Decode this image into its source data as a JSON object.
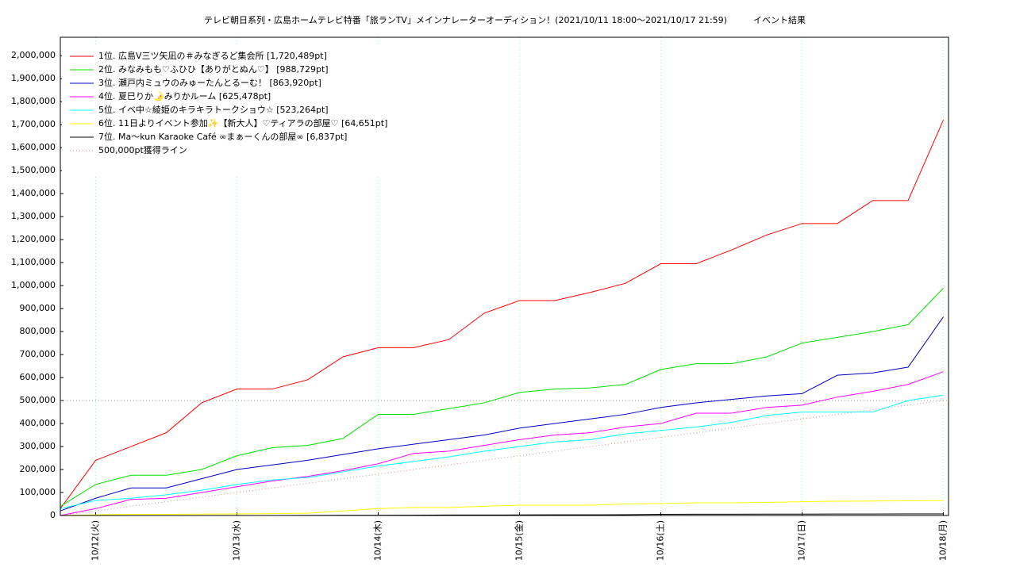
{
  "chart_data": {
    "type": "line",
    "title": "テレビ朝日系列・広島ホームテレビ特番「旅ランTV」メインナレーターオーディション！(2021/10/11 18:00〜2021/10/17 21:59)　　　イベント結果",
    "categories": [
      null,
      "10/12(火)",
      null,
      null,
      null,
      "10/13(水)",
      null,
      null,
      null,
      "10/14(木)",
      null,
      null,
      null,
      "10/15(金)",
      null,
      null,
      null,
      "10/16(土)",
      null,
      null,
      null,
      "10/17(日)",
      null,
      null,
      null,
      "10/18(月)"
    ],
    "ylim": [
      0,
      2080000
    ],
    "yticks": [
      0,
      {
        "value": 100000,
        "label": "100,000"
      },
      {
        "value": 200000,
        "label": "200,000"
      },
      {
        "value": 300000,
        "label": "300,000"
      },
      {
        "value": 400000,
        "label": "400,000"
      },
      {
        "value": 500000,
        "label": "500,000"
      },
      {
        "value": 600000,
        "label": "600,000"
      },
      {
        "value": 700000,
        "label": "700,000"
      },
      {
        "value": 800000,
        "label": "800,000"
      },
      {
        "value": 900000,
        "label": "900,000"
      },
      {
        "value": 1000000,
        "label": "1,000,000"
      },
      {
        "value": 1100000,
        "label": "1,100,000"
      },
      {
        "value": 1200000,
        "label": "1,200,000"
      },
      {
        "value": 1300000,
        "label": "1,300,000"
      },
      {
        "value": 1400000,
        "label": "1,400,000"
      },
      {
        "value": 1500000,
        "label": "1,500,000"
      },
      {
        "value": 1600000,
        "label": "1,600,000"
      },
      {
        "value": 1700000,
        "label": "1,700,000"
      },
      {
        "value": 1800000,
        "label": "1,800,000"
      },
      {
        "value": 1900000,
        "label": "1,900,000"
      },
      {
        "value": 2000000,
        "label": "2,000,000"
      }
    ],
    "grid": true,
    "threshold": 500000,
    "series": [
      {
        "name": "1位. 広島V三ツ矢凪の＃みなぎるど集会所 [1,720,489pt]",
        "color": "#ff0000",
        "values": [
          30000,
          240000,
          300000,
          360000,
          490000,
          550000,
          550000,
          590000,
          690000,
          730000,
          730000,
          765000,
          880000,
          935000,
          935000,
          970000,
          1010000,
          1095000,
          1095000,
          1155000,
          1220000,
          1270000,
          1270000,
          1370000,
          1370000,
          1720489
        ]
      },
      {
        "name": "2位. みなみもも♡ふひひ【ありがとぬん♡】 [988,729pt]",
        "color": "#00e000",
        "values": [
          40000,
          135000,
          175000,
          175000,
          200000,
          260000,
          295000,
          305000,
          335000,
          440000,
          440000,
          465000,
          490000,
          535000,
          550000,
          555000,
          570000,
          635000,
          660000,
          660000,
          690000,
          750000,
          775000,
          800000,
          830000,
          988729
        ]
      },
      {
        "name": "3位. 瀬戸内ミュウのみゅーたんとるーむ！ [863,920pt]",
        "color": "#0000c0",
        "values": [
          20000,
          75000,
          120000,
          120000,
          160000,
          200000,
          220000,
          240000,
          265000,
          290000,
          310000,
          330000,
          350000,
          380000,
          400000,
          420000,
          440000,
          470000,
          490000,
          505000,
          520000,
          530000,
          610000,
          620000,
          645000,
          863920
        ]
      },
      {
        "name": "4位. 夏巳りか🌛みりかルーム [625,478pt]",
        "color": "#ff00ff",
        "values": [
          0,
          30000,
          70000,
          75000,
          100000,
          125000,
          150000,
          170000,
          195000,
          225000,
          270000,
          280000,
          305000,
          330000,
          350000,
          360000,
          385000,
          400000,
          445000,
          445000,
          470000,
          480000,
          515000,
          540000,
          570000,
          625478
        ]
      },
      {
        "name": "5位. イベ中☆綾姫のキラキラトークショウ☆ [523,264pt]",
        "color": "#00ffff",
        "values": [
          30000,
          65000,
          75000,
          90000,
          110000,
          135000,
          155000,
          165000,
          190000,
          215000,
          235000,
          255000,
          280000,
          300000,
          320000,
          330000,
          355000,
          370000,
          385000,
          405000,
          435000,
          450000,
          450000,
          450000,
          500000,
          523264
        ]
      },
      {
        "name": "6位. 11日よりイベント参加✨【新大人】♡ティアラの部屋♡ [64,651pt]",
        "color": "#ffff00",
        "values": [
          0,
          3000,
          5000,
          5000,
          6000,
          7000,
          8000,
          10000,
          20000,
          30000,
          35000,
          35000,
          40000,
          45000,
          45000,
          45000,
          50000,
          52000,
          55000,
          55000,
          57000,
          60000,
          62000,
          63000,
          64000,
          64651
        ]
      },
      {
        "name": "7位. Ma〜kun Karaoke Café ∞まぁーくんの部屋∞ [6,837pt]",
        "color": "#000000",
        "values": [
          0,
          0,
          0,
          0,
          0,
          0,
          0,
          500,
          1000,
          1000,
          1500,
          2000,
          2000,
          2500,
          3000,
          3000,
          3500,
          5000,
          5500,
          5500,
          6000,
          6000,
          6500,
          6500,
          6800,
          6837
        ]
      },
      {
        "name": "500,000pt獲得ライン",
        "color": "#d09090",
        "dashed": true,
        "values": [
          0,
          20000,
          40000,
          60000,
          80000,
          100000,
          120000,
          140000,
          160000,
          180000,
          200000,
          220000,
          240000,
          260000,
          280000,
          300000,
          320000,
          340000,
          360000,
          380000,
          400000,
          420000,
          440000,
          460000,
          480000,
          500000
        ]
      }
    ]
  }
}
